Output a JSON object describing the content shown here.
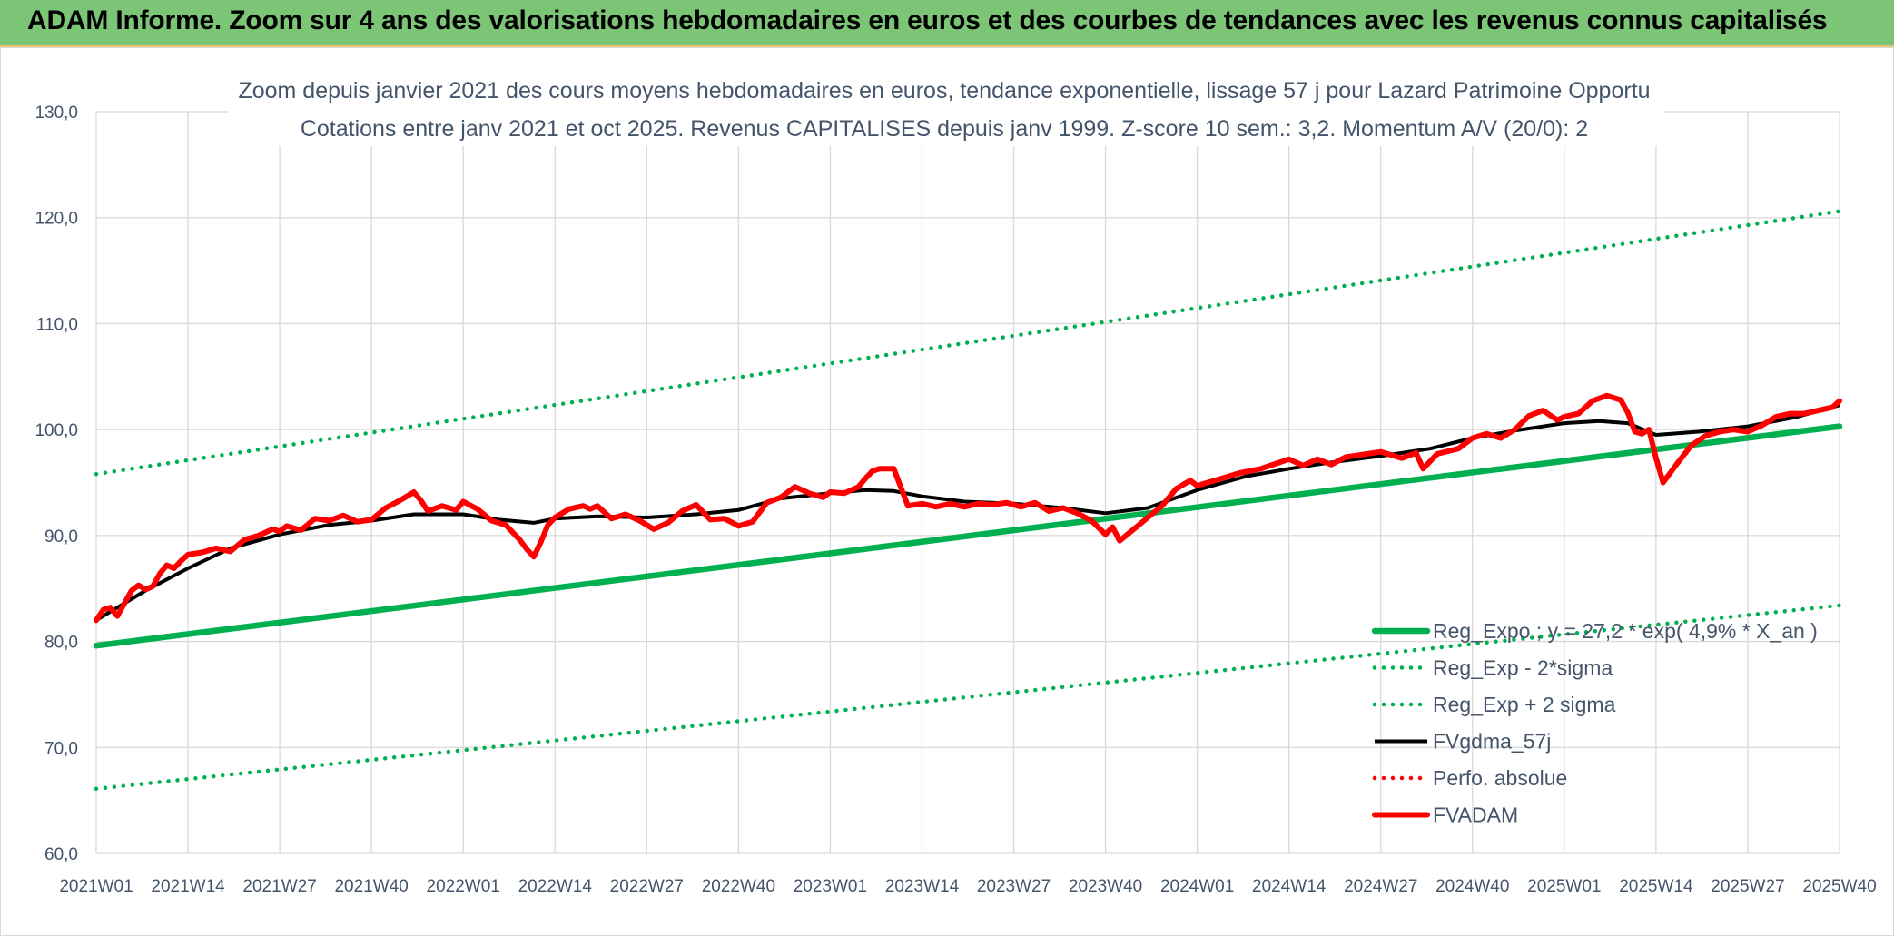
{
  "banner": {
    "title": "ADAM Informe. Zoom sur 4 ans des valorisations hebdomadaires en euros et des courbes de tendances avec les revenus connus capitalisés"
  },
  "colors": {
    "banner_bg": "#7cc576",
    "reg_expo": "#00b050",
    "fvadam": "#ff0000",
    "fvgdma": "#000000",
    "grid": "#d9d9d9",
    "text": "#44546a"
  },
  "chart_data": {
    "type": "line",
    "title_line1": "Zoom depuis janvier 2021 des cours moyens hebdomadaires en euros, tendance exponentielle, lissage 57 j pour Lazard Patrimoine Opportu",
    "title_line2": "Cotations entre janv 2021 et oct 2025. Revenus CAPITALISES depuis janv 1999. Z-score 10 sem.: 3,2. Momentum A/V (20/0): 2",
    "xlabel": "",
    "ylabel": "",
    "ylim": [
      60,
      130
    ],
    "y_ticks": [
      "60,0",
      "70,0",
      "80,0",
      "90,0",
      "100,0",
      "110,0",
      "120,0",
      "130,0"
    ],
    "x_ticks": [
      "2021W01",
      "2021W14",
      "2021W27",
      "2021W40",
      "2022W01",
      "2022W14",
      "2022W27",
      "2022W40",
      "2023W01",
      "2023W14",
      "2023W27",
      "2023W40",
      "2024W01",
      "2024W14",
      "2024W27",
      "2024W40",
      "2025W01",
      "2025W14",
      "2025W27",
      "2025W40"
    ],
    "week_count": 248,
    "grid": true,
    "legend_position": "bottom-right",
    "series": [
      {
        "name": "Reg_Expo ; y = 27,2 * exp( 4,9% * X_an )",
        "style": "solid-thick",
        "color": "#00b050",
        "x": [
          "2021W01",
          "2025W40"
        ],
        "values": [
          79.6,
          100.3
        ]
      },
      {
        "name": "Reg_Exp - 2*sigma",
        "style": "dotted",
        "color": "#00b050",
        "x": [
          "2021W01",
          "2025W40"
        ],
        "values": [
          66.1,
          83.4
        ]
      },
      {
        "name": "Reg_Exp + 2 sigma",
        "style": "dotted",
        "color": "#00b050",
        "x": [
          "2021W01",
          "2025W40"
        ],
        "values": [
          95.8,
          120.6
        ]
      },
      {
        "name": "FVgdma_57j",
        "style": "solid",
        "color": "#000000",
        "x": [
          "2021W01",
          "2021W08",
          "2021W14",
          "2021W20",
          "2021W27",
          "2021W34",
          "2021W40",
          "2021W46",
          "2022W01",
          "2022W06",
          "2022W11",
          "2022W14",
          "2022W20",
          "2022W27",
          "2022W34",
          "2022W40",
          "2022W46",
          "2023W01",
          "2023W06",
          "2023W10",
          "2023W14",
          "2023W20",
          "2023W27",
          "2023W34",
          "2023W40",
          "2023W46",
          "2024W01",
          "2024W08",
          "2024W14",
          "2024W20",
          "2024W27",
          "2024W34",
          "2024W40",
          "2024W46",
          "2025W01",
          "2025W06",
          "2025W10",
          "2025W14",
          "2025W20",
          "2025W27",
          "2025W34",
          "2025W40"
        ],
        "values": [
          82.0,
          84.8,
          86.9,
          88.8,
          90.1,
          91.0,
          91.4,
          92.0,
          92.0,
          91.5,
          91.2,
          91.6,
          91.8,
          91.7,
          92.0,
          92.4,
          93.5,
          94.0,
          94.3,
          94.2,
          93.7,
          93.2,
          93.0,
          92.6,
          92.1,
          92.6,
          94.3,
          95.6,
          96.3,
          96.9,
          97.5,
          98.2,
          99.2,
          99.9,
          100.6,
          100.8,
          100.6,
          99.5,
          99.8,
          100.3,
          101.2,
          102.3
        ]
      },
      {
        "name": "Perfo. absolue",
        "style": "dotted",
        "color": "#ff0000",
        "x": [],
        "values": []
      },
      {
        "name": "FVADAM",
        "style": "solid-thick",
        "color": "#ff0000",
        "x": [
          "2021W01",
          "2021W02",
          "2021W03",
          "2021W04",
          "2021W05",
          "2021W06",
          "2021W07",
          "2021W08",
          "2021W09",
          "2021W10",
          "2021W11",
          "2021W12",
          "2021W13",
          "2021W14",
          "2021W16",
          "2021W18",
          "2021W20",
          "2021W22",
          "2021W24",
          "2021W26",
          "2021W27",
          "2021W28",
          "2021W30",
          "2021W32",
          "2021W34",
          "2021W36",
          "2021W38",
          "2021W40",
          "2021W42",
          "2021W44",
          "2021W46",
          "2021W47",
          "2021W48",
          "2021W50",
          "2021W52",
          "2022W01",
          "2022W03",
          "2022W05",
          "2022W07",
          "2022W09",
          "2022W10",
          "2022W11",
          "2022W12",
          "2022W13",
          "2022W14",
          "2022W16",
          "2022W18",
          "2022W19",
          "2022W20",
          "2022W22",
          "2022W24",
          "2022W26",
          "2022W28",
          "2022W30",
          "2022W32",
          "2022W34",
          "2022W36",
          "2022W38",
          "2022W40",
          "2022W42",
          "2022W44",
          "2022W46",
          "2022W48",
          "2022W50",
          "2022W52",
          "2023W01",
          "2023W03",
          "2023W05",
          "2023W06",
          "2023W07",
          "2023W08",
          "2023W10",
          "2023W12",
          "2023W14",
          "2023W16",
          "2023W18",
          "2023W20",
          "2023W22",
          "2023W24",
          "2023W26",
          "2023W28",
          "2023W30",
          "2023W32",
          "2023W34",
          "2023W36",
          "2023W38",
          "2023W40",
          "2023W41",
          "2023W42",
          "2023W44",
          "2023W46",
          "2023W48",
          "2023W50",
          "2023W52",
          "2024W01",
          "2024W04",
          "2024W07",
          "2024W10",
          "2024W14",
          "2024W16",
          "2024W18",
          "2024W20",
          "2024W22",
          "2024W24",
          "2024W27",
          "2024W30",
          "2024W32",
          "2024W33",
          "2024W35",
          "2024W38",
          "2024W40",
          "2024W42",
          "2024W44",
          "2024W46",
          "2024W48",
          "2024W50",
          "2024W52",
          "2025W01",
          "2025W03",
          "2025W05",
          "2025W07",
          "2025W09",
          "2025W10",
          "2025W11",
          "2025W12",
          "2025W13",
          "2025W14",
          "2025W15",
          "2025W17",
          "2025W19",
          "2025W21",
          "2025W23",
          "2025W25",
          "2025W27",
          "2025W29",
          "2025W31",
          "2025W33",
          "2025W35",
          "2025W37",
          "2025W39",
          "2025W40"
        ],
        "values": [
          82.0,
          83.0,
          83.2,
          82.4,
          83.6,
          84.8,
          85.3,
          84.9,
          85.2,
          86.4,
          87.2,
          86.9,
          87.6,
          88.2,
          88.4,
          88.8,
          88.5,
          89.6,
          90.0,
          90.6,
          90.4,
          90.9,
          90.5,
          91.6,
          91.4,
          91.9,
          91.3,
          91.5,
          92.6,
          93.3,
          94.1,
          93.3,
          92.3,
          92.8,
          92.4,
          93.2,
          92.5,
          91.4,
          91.0,
          89.6,
          88.7,
          88.0,
          89.4,
          91.0,
          91.7,
          92.5,
          92.8,
          92.5,
          92.8,
          91.6,
          92.0,
          91.4,
          90.6,
          91.2,
          92.3,
          92.9,
          91.5,
          91.6,
          90.9,
          91.3,
          93.1,
          93.6,
          94.6,
          94.0,
          93.6,
          94.1,
          94.0,
          94.6,
          95.4,
          96.1,
          96.3,
          96.3,
          92.8,
          93.0,
          92.7,
          93.0,
          92.7,
          93.0,
          92.9,
          93.1,
          92.7,
          93.1,
          92.3,
          92.6,
          92.1,
          91.4,
          90.1,
          90.8,
          89.5,
          90.6,
          91.7,
          92.8,
          94.4,
          95.2,
          94.7,
          95.3,
          95.9,
          96.3,
          97.2,
          96.6,
          97.2,
          96.7,
          97.4,
          97.6,
          97.9,
          97.3,
          97.8,
          96.3,
          97.7,
          98.2,
          99.2,
          99.6,
          99.2,
          100.0,
          101.3,
          101.8,
          100.9,
          101.2,
          101.5,
          102.7,
          103.2,
          102.8,
          101.6,
          99.8,
          99.6,
          100.0,
          97.3,
          95.0,
          96.8,
          98.5,
          99.4,
          99.8,
          100.0,
          99.8,
          100.4,
          101.2,
          101.5,
          101.5,
          101.8,
          102.1,
          102.7
        ]
      }
    ]
  },
  "legend": [
    {
      "label": "Reg_Expo ; y = 27,2 * exp( 4,9% * X_an )",
      "style": "solid-thick",
      "color": "#00b050"
    },
    {
      "label": "Reg_Exp - 2*sigma",
      "style": "dotted",
      "color": "#00b050"
    },
    {
      "label": "Reg_Exp + 2 sigma",
      "style": "dotted",
      "color": "#00b050"
    },
    {
      "label": "FVgdma_57j",
      "style": "solid",
      "color": "#000000"
    },
    {
      "label": "Perfo. absolue",
      "style": "dotted",
      "color": "#ff0000"
    },
    {
      "label": "FVADAM",
      "style": "solid-thick",
      "color": "#ff0000"
    }
  ]
}
